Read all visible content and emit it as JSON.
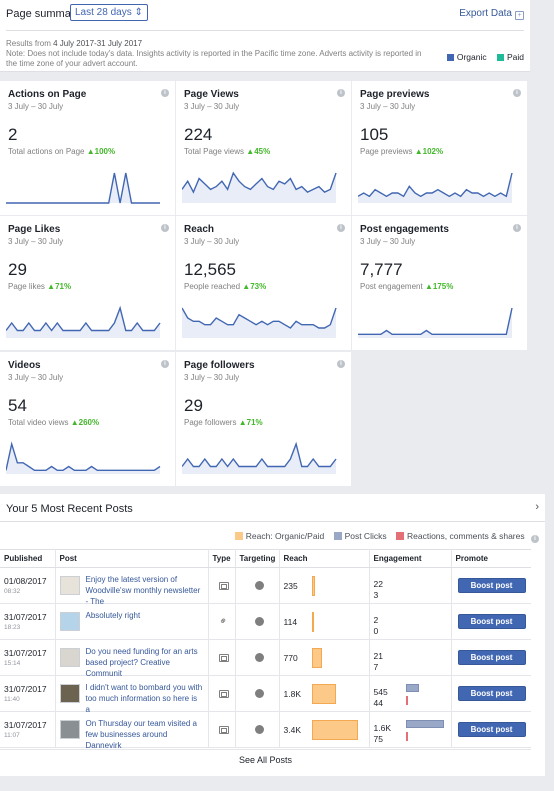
{
  "summary": {
    "title": "Page summary",
    "range_label": "Last 28 days",
    "export_label": "Export Data",
    "results_prefix": "Results from ",
    "results_range": "4 July 2017-31 July 2017",
    "note": "Note: Does not include today's data. Insights activity is reported in the Pacific time zone. Adverts activity is reported in the time zone of your advert account.",
    "legend": [
      {
        "label": "Organic",
        "color": "#4267b2"
      },
      {
        "label": "Paid",
        "color": "#1fbb99"
      }
    ]
  },
  "cards": [
    {
      "name": "Actions on Page",
      "dates": "3 July – 30 July",
      "value": "2",
      "caption": "Total actions on Page",
      "pct": "100%",
      "series": [
        0,
        0,
        0,
        0,
        0,
        0,
        0,
        0,
        0,
        0,
        0,
        0,
        0,
        0,
        0,
        0,
        0,
        0,
        0,
        1,
        0,
        1,
        0,
        0,
        0,
        0,
        0,
        0
      ]
    },
    {
      "name": "Page Views",
      "dates": "3 July – 30 July",
      "value": "224",
      "caption": "Total Page views",
      "pct": "45%",
      "series": [
        5,
        8,
        4,
        9,
        7,
        5,
        6,
        8,
        5,
        11,
        8,
        6,
        5,
        7,
        9,
        6,
        5,
        8,
        7,
        9,
        5,
        6,
        4,
        5,
        6,
        4,
        5,
        11
      ]
    },
    {
      "name": "Page previews",
      "dates": "3 July – 30 July",
      "value": "105",
      "caption": "Page previews",
      "pct": "102%",
      "series": [
        2,
        3,
        2,
        4,
        3,
        2,
        3,
        3,
        2,
        5,
        3,
        2,
        3,
        3,
        4,
        3,
        2,
        3,
        2,
        4,
        3,
        3,
        2,
        3,
        2,
        3,
        2,
        9
      ]
    },
    {
      "name": "Page Likes",
      "dates": "3 July – 30 July",
      "value": "29",
      "caption": "Page likes",
      "pct": "71%",
      "series": [
        1,
        2,
        1,
        1,
        2,
        1,
        1,
        2,
        1,
        2,
        1,
        1,
        1,
        1,
        2,
        1,
        1,
        1,
        1,
        2,
        4,
        1,
        1,
        2,
        1,
        1,
        1,
        2
      ]
    },
    {
      "name": "Reach",
      "dates": "3 July – 30 July",
      "value": "12,565",
      "caption": "People reached",
      "pct": "73%",
      "series": [
        9,
        6,
        5,
        5,
        4,
        4,
        6,
        5,
        4,
        4,
        7,
        6,
        5,
        4,
        5,
        4,
        5,
        5,
        4,
        3,
        5,
        4,
        4,
        4,
        3,
        3,
        4,
        9
      ]
    },
    {
      "name": "Post engagements",
      "dates": "3 July – 30 July",
      "value": "7,777",
      "caption": "Post engagement",
      "pct": "175%",
      "series": [
        1,
        1,
        1,
        1,
        1,
        2,
        1,
        1,
        1,
        1,
        1,
        1,
        2,
        1,
        1,
        1,
        1,
        1,
        1,
        1,
        1,
        1,
        1,
        1,
        1,
        1,
        1,
        8
      ]
    },
    {
      "name": "Videos",
      "dates": "3 July – 30 July",
      "value": "54",
      "caption": "Total video views",
      "pct": "260%",
      "series": [
        1,
        8,
        3,
        3,
        2,
        1,
        1,
        1,
        2,
        1,
        1,
        2,
        1,
        1,
        1,
        2,
        1,
        1,
        1,
        1,
        1,
        1,
        1,
        1,
        1,
        1,
        1,
        2
      ]
    },
    {
      "name": "Page followers",
      "dates": "3 July – 30 July",
      "value": "29",
      "caption": "Page followers",
      "pct": "71%",
      "series": [
        1,
        2,
        1,
        1,
        2,
        1,
        1,
        2,
        1,
        2,
        1,
        1,
        1,
        1,
        2,
        1,
        1,
        1,
        1,
        2,
        4,
        1,
        1,
        2,
        1,
        1,
        1,
        2
      ]
    }
  ],
  "posts": {
    "title": "Your 5 Most Recent Posts",
    "legend": [
      {
        "label": "Reach: Organic/Paid",
        "color": "#fcc988"
      },
      {
        "label": "Post Clicks",
        "color": "#99a8c7"
      },
      {
        "label": "Reactions, comments & shares",
        "color": "#e47077"
      }
    ],
    "columns": [
      "Published",
      "Post",
      "Type",
      "Targeting",
      "Reach",
      "Engagement",
      "Promote"
    ],
    "rows": [
      {
        "date": "01/08/2017",
        "time": "08:32",
        "text": "Enjoy the latest version of Woodville'sw monthly newsletter - The",
        "type": "status",
        "reach": "235",
        "reach_frac": 0.06,
        "eng1": "22",
        "eng2": "3",
        "clicks_frac": 0.0,
        "react_frac": 0.0,
        "button": "Boost post"
      },
      {
        "date": "31/07/2017",
        "time": "18:23",
        "text": "Absolutely right",
        "type": "link",
        "reach": "114",
        "reach_frac": 0.03,
        "eng1": "2",
        "eng2": "0",
        "clicks_frac": 0.0,
        "react_frac": 0.0,
        "button": "Boost post"
      },
      {
        "date": "31/07/2017",
        "time": "15:14",
        "text": "Do you need funding for an arts based project? Creative Communit",
        "type": "status",
        "reach": "770",
        "reach_frac": 0.22,
        "eng1": "21",
        "eng2": "7",
        "clicks_frac": 0.0,
        "react_frac": 0.0,
        "button": "Boost post"
      },
      {
        "date": "31/07/2017",
        "time": "11:40",
        "text": "I didn't want to bombard you with too much information so here is a",
        "type": "status",
        "reach": "1.8K",
        "reach_frac": 0.53,
        "eng1": "545",
        "eng2": "44",
        "clicks_frac": 0.34,
        "react_frac": 0.05,
        "button": "Boost post"
      },
      {
        "date": "31/07/2017",
        "time": "11:07",
        "text": "On Thursday our team visited a few businesses around Dannevirk",
        "type": "status",
        "reach": "3.4K",
        "reach_frac": 1.0,
        "eng1": "1.6K",
        "eng2": "75",
        "clicks_frac": 1.0,
        "react_frac": 0.05,
        "button": "Boost post"
      }
    ],
    "see_all": "See All Posts"
  }
}
